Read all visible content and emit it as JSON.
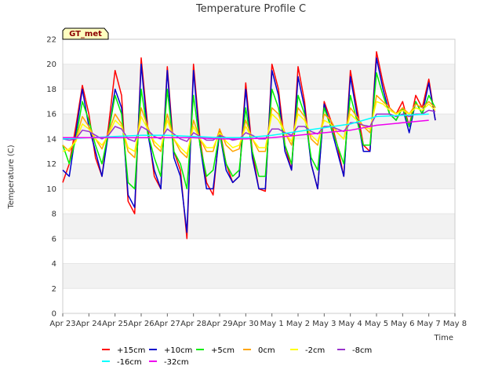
{
  "chart_data": {
    "type": "line",
    "title": "Temperature Profile C",
    "xlabel": "Time",
    "ylabel": "Temperature (C)",
    "ylim": [
      0,
      22
    ],
    "yticks": [
      0,
      2,
      4,
      6,
      8,
      10,
      12,
      14,
      16,
      18,
      20,
      22
    ],
    "xlim": [
      "Apr 23",
      "May 8"
    ],
    "xticks": [
      "Apr 23",
      "Apr 24",
      "Apr 25",
      "Apr 26",
      "Apr 27",
      "Apr 28",
      "Apr 29",
      "Apr 30",
      "May 1",
      "May 2",
      "May 3",
      "May 4",
      "May 5",
      "May 6",
      "May 7",
      "May 8"
    ],
    "grid": "horizontal bands",
    "legend_position": "bottom",
    "badge": "GT_met",
    "series": [
      {
        "name": "+15cm",
        "color": "#ff0000",
        "x": [
          "Apr 23",
          "Apr 23 06:00",
          "Apr 23 12:00",
          "Apr 23 18:00",
          "Apr 24",
          "Apr 24 06:00",
          "Apr 24 12:00",
          "Apr 24 18:00",
          "Apr 25",
          "Apr 25 06:00",
          "Apr 25 12:00",
          "Apr 25 18:00",
          "Apr 26",
          "Apr 26 06:00",
          "Apr 26 12:00",
          "Apr 26 18:00",
          "Apr 27",
          "Apr 27 06:00",
          "Apr 27 12:00",
          "Apr 27 18:00",
          "Apr 28",
          "Apr 28 06:00",
          "Apr 28 12:00",
          "Apr 28 18:00",
          "Apr 29",
          "Apr 29 06:00",
          "Apr 29 12:00",
          "Apr 29 18:00",
          "Apr 30",
          "Apr 30 06:00",
          "Apr 30 12:00",
          "Apr 30 18:00",
          "May 1",
          "May 1 06:00",
          "May 1 12:00",
          "May 1 18:00",
          "May 2",
          "May 2 06:00",
          "May 2 12:00",
          "May 2 18:00",
          "May 3",
          "May 3 06:00",
          "May 3 12:00",
          "May 3 18:00",
          "May 4",
          "May 4 06:00",
          "May 4 12:00",
          "May 4 18:00",
          "May 5",
          "May 5 06:00",
          "May 5 12:00",
          "May 5 18:00",
          "May 6",
          "May 6 06:00",
          "May 6 12:00",
          "May 6 18:00",
          "May 7",
          "May 7 06:00"
        ],
        "values": [
          10.5,
          12.0,
          15.0,
          18.3,
          16.0,
          12.5,
          11.0,
          15.0,
          19.5,
          17.5,
          9.0,
          8.0,
          20.5,
          15.0,
          11.0,
          10.0,
          19.8,
          13.0,
          11.5,
          6.0,
          20.0,
          14.0,
          10.5,
          9.5,
          14.8,
          12.0,
          10.5,
          11.0,
          18.5,
          13.0,
          10.0,
          9.8,
          20.0,
          18.0,
          13.5,
          11.5,
          19.8,
          17.0,
          12.0,
          10.0,
          17.0,
          15.5,
          13.5,
          11.0,
          19.5,
          16.5,
          13.5,
          13.0,
          21.0,
          18.5,
          16.5,
          16.0,
          17.0,
          15.0,
          17.5,
          16.5,
          18.8,
          15.5
        ]
      },
      {
        "name": "+10cm",
        "color": "#0000cc",
        "x": [
          "Apr 23",
          "Apr 23 06:00",
          "Apr 23 12:00",
          "Apr 23 18:00",
          "Apr 24",
          "Apr 24 06:00",
          "Apr 24 12:00",
          "Apr 24 18:00",
          "Apr 25",
          "Apr 25 06:00",
          "Apr 25 12:00",
          "Apr 25 18:00",
          "Apr 26",
          "Apr 26 06:00",
          "Apr 26 12:00",
          "Apr 26 18:00",
          "Apr 27",
          "Apr 27 06:00",
          "Apr 27 12:00",
          "Apr 27 18:00",
          "Apr 28",
          "Apr 28 06:00",
          "Apr 28 12:00",
          "Apr 28 18:00",
          "Apr 29",
          "Apr 29 06:00",
          "Apr 29 12:00",
          "Apr 29 18:00",
          "Apr 30",
          "Apr 30 06:00",
          "Apr 30 12:00",
          "Apr 30 18:00",
          "May 1",
          "May 1 06:00",
          "May 1 12:00",
          "May 1 18:00",
          "May 2",
          "May 2 06:00",
          "May 2 12:00",
          "May 2 18:00",
          "May 3",
          "May 3 06:00",
          "May 3 12:00",
          "May 3 18:00",
          "May 4",
          "May 4 06:00",
          "May 4 12:00",
          "May 4 18:00",
          "May 5",
          "May 5 06:00",
          "May 5 12:00",
          "May 5 18:00",
          "May 6",
          "May 6 06:00",
          "May 6 12:00",
          "May 6 18:00",
          "May 7",
          "May 7 06:00"
        ],
        "values": [
          11.5,
          11.0,
          14.5,
          18.0,
          15.0,
          13.0,
          11.0,
          14.5,
          18.0,
          16.5,
          9.5,
          8.5,
          20.0,
          14.5,
          11.5,
          10.0,
          19.5,
          12.5,
          11.0,
          6.5,
          19.5,
          13.5,
          10.0,
          10.0,
          14.5,
          11.5,
          10.5,
          11.0,
          18.0,
          12.5,
          10.0,
          10.0,
          19.5,
          17.5,
          13.0,
          11.5,
          19.0,
          16.5,
          12.0,
          10.0,
          16.8,
          15.0,
          13.0,
          11.0,
          19.0,
          16.0,
          13.0,
          13.0,
          20.5,
          18.0,
          16.0,
          15.5,
          16.5,
          14.5,
          17.0,
          16.0,
          18.5,
          15.5
        ]
      },
      {
        "name": "+5cm",
        "color": "#00ee00",
        "x": [
          "Apr 23",
          "Apr 23 06:00",
          "Apr 23 12:00",
          "Apr 23 18:00",
          "Apr 24",
          "Apr 24 06:00",
          "Apr 24 12:00",
          "Apr 24 18:00",
          "Apr 25",
          "Apr 25 06:00",
          "Apr 25 12:00",
          "Apr 25 18:00",
          "Apr 26",
          "Apr 26 06:00",
          "Apr 26 12:00",
          "Apr 26 18:00",
          "Apr 27",
          "Apr 27 06:00",
          "Apr 27 12:00",
          "Apr 27 18:00",
          "Apr 28",
          "Apr 28 06:00",
          "Apr 28 12:00",
          "Apr 28 18:00",
          "Apr 29",
          "Apr 29 06:00",
          "Apr 29 12:00",
          "Apr 29 18:00",
          "Apr 30",
          "Apr 30 06:00",
          "Apr 30 12:00",
          "Apr 30 18:00",
          "May 1",
          "May 1 06:00",
          "May 1 12:00",
          "May 1 18:00",
          "May 2",
          "May 2 06:00",
          "May 2 12:00",
          "May 2 18:00",
          "May 3",
          "May 3 06:00",
          "May 3 12:00",
          "May 3 18:00",
          "May 4",
          "May 4 06:00",
          "May 4 12:00",
          "May 4 18:00",
          "May 5",
          "May 5 06:00",
          "May 5 12:00",
          "May 5 18:00",
          "May 6",
          "May 6 06:00",
          "May 6 12:00",
          "May 6 18:00",
          "May 7",
          "May 7 06:00"
        ],
        "values": [
          13.5,
          12.0,
          14.0,
          17.0,
          15.5,
          13.5,
          12.0,
          14.5,
          17.5,
          16.0,
          10.5,
          10.0,
          18.0,
          14.5,
          12.5,
          11.0,
          18.0,
          13.0,
          12.0,
          10.0,
          17.5,
          13.5,
          11.0,
          11.5,
          14.5,
          12.0,
          11.0,
          11.5,
          16.5,
          13.0,
          11.0,
          11.0,
          18.0,
          16.5,
          13.5,
          12.0,
          17.5,
          16.0,
          12.5,
          11.5,
          16.5,
          15.0,
          13.5,
          12.0,
          17.5,
          15.5,
          13.5,
          13.5,
          19.3,
          17.5,
          16.0,
          15.5,
          16.5,
          15.0,
          17.0,
          16.0,
          17.5,
          16.5
        ]
      },
      {
        "name": "0cm",
        "color": "#ffa500",
        "x": [
          "Apr 23",
          "Apr 23 06:00",
          "Apr 23 12:00",
          "Apr 23 18:00",
          "Apr 24",
          "Apr 24 06:00",
          "Apr 24 12:00",
          "Apr 24 18:00",
          "Apr 25",
          "Apr 25 06:00",
          "Apr 25 12:00",
          "Apr 25 18:00",
          "Apr 26",
          "Apr 26 06:00",
          "Apr 26 12:00",
          "Apr 26 18:00",
          "Apr 27",
          "Apr 27 06:00",
          "Apr 27 12:00",
          "Apr 27 18:00",
          "Apr 28",
          "Apr 28 06:00",
          "Apr 28 12:00",
          "Apr 28 18:00",
          "Apr 29",
          "Apr 29 06:00",
          "Apr 29 12:00",
          "Apr 29 18:00",
          "Apr 30",
          "Apr 30 06:00",
          "Apr 30 12:00",
          "Apr 30 18:00",
          "May 1",
          "May 1 06:00",
          "May 1 12:00",
          "May 1 18:00",
          "May 2",
          "May 2 06:00",
          "May 2 12:00",
          "May 2 18:00",
          "May 3",
          "May 3 06:00",
          "May 3 12:00",
          "May 3 18:00",
          "May 4",
          "May 4 06:00",
          "May 4 12:00",
          "May 4 18:00",
          "May 5",
          "May 5 06:00",
          "May 5 12:00",
          "May 5 18:00",
          "May 6",
          "May 6 06:00",
          "May 6 12:00",
          "May 6 18:00",
          "May 7",
          "May 7 06:00"
        ],
        "values": [
          13.5,
          13.0,
          14.0,
          15.8,
          15.0,
          14.0,
          13.2,
          14.5,
          16.0,
          15.2,
          13.0,
          12.5,
          16.5,
          15.0,
          13.5,
          13.0,
          16.0,
          14.0,
          13.0,
          12.5,
          15.5,
          14.0,
          13.0,
          13.0,
          14.8,
          13.5,
          13.0,
          13.2,
          15.5,
          14.0,
          13.0,
          13.0,
          16.5,
          16.0,
          14.5,
          13.5,
          16.5,
          15.8,
          14.0,
          13.5,
          16.0,
          15.5,
          14.5,
          14.0,
          16.5,
          15.8,
          15.0,
          14.5,
          17.5,
          17.0,
          16.5,
          16.0,
          16.5,
          16.0,
          16.8,
          16.5,
          17.0,
          16.5
        ]
      },
      {
        "name": "-2cm",
        "color": "#ffff00",
        "x": [
          "Apr 23",
          "Apr 23 06:00",
          "Apr 23 12:00",
          "Apr 23 18:00",
          "Apr 24",
          "Apr 24 06:00",
          "Apr 24 12:00",
          "Apr 24 18:00",
          "Apr 25",
          "Apr 25 06:00",
          "Apr 25 12:00",
          "Apr 25 18:00",
          "Apr 26",
          "Apr 26 06:00",
          "Apr 26 12:00",
          "Apr 26 18:00",
          "Apr 27",
          "Apr 27 06:00",
          "Apr 27 12:00",
          "Apr 27 18:00",
          "Apr 28",
          "Apr 28 06:00",
          "Apr 28 12:00",
          "Apr 28 18:00",
          "Apr 29",
          "Apr 29 06:00",
          "Apr 29 12:00",
          "Apr 29 18:00",
          "Apr 30",
          "Apr 30 06:00",
          "Apr 30 12:00",
          "Apr 30 18:00",
          "May 1",
          "May 1 06:00",
          "May 1 12:00",
          "May 1 18:00",
          "May 2",
          "May 2 06:00",
          "May 2 12:00",
          "May 2 18:00",
          "May 3",
          "May 3 06:00",
          "May 3 12:00",
          "May 3 18:00",
          "May 4",
          "May 4 06:00",
          "May 4 12:00",
          "May 4 18:00",
          "May 5",
          "May 5 06:00",
          "May 5 12:00",
          "May 5 18:00",
          "May 6",
          "May 6 06:00",
          "May 6 12:00",
          "May 6 18:00",
          "May 7",
          "May 7 06:00"
        ],
        "values": [
          13.0,
          13.2,
          13.8,
          15.2,
          14.8,
          14.0,
          13.5,
          14.3,
          15.5,
          15.0,
          13.3,
          13.0,
          15.8,
          14.8,
          13.8,
          13.3,
          15.5,
          14.0,
          13.3,
          12.8,
          15.0,
          14.0,
          13.3,
          13.3,
          14.5,
          13.8,
          13.3,
          13.5,
          15.0,
          14.0,
          13.3,
          13.3,
          16.0,
          15.5,
          14.5,
          13.8,
          16.0,
          15.5,
          14.3,
          13.8,
          15.5,
          15.2,
          14.5,
          14.0,
          16.0,
          15.5,
          15.0,
          14.8,
          17.0,
          16.8,
          16.3,
          16.0,
          16.3,
          16.0,
          16.5,
          16.3,
          16.8,
          16.3
        ]
      },
      {
        "name": "-8cm",
        "color": "#9932cc",
        "x": [
          "Apr 23",
          "Apr 23 06:00",
          "Apr 23 12:00",
          "Apr 23 18:00",
          "Apr 24",
          "Apr 24 06:00",
          "Apr 24 12:00",
          "Apr 24 18:00",
          "Apr 25",
          "Apr 25 06:00",
          "Apr 25 12:00",
          "Apr 25 18:00",
          "Apr 26",
          "Apr 26 06:00",
          "Apr 26 12:00",
          "Apr 26 18:00",
          "Apr 27",
          "Apr 27 06:00",
          "Apr 27 12:00",
          "Apr 27 18:00",
          "Apr 28",
          "Apr 28 06:00",
          "Apr 28 12:00",
          "Apr 28 18:00",
          "Apr 29",
          "Apr 29 06:00",
          "Apr 29 12:00",
          "Apr 29 18:00",
          "Apr 30",
          "Apr 30 06:00",
          "Apr 30 12:00",
          "Apr 30 18:00",
          "May 1",
          "May 1 06:00",
          "May 1 12:00",
          "May 1 18:00",
          "May 2",
          "May 2 06:00",
          "May 2 12:00",
          "May 2 18:00",
          "May 3",
          "May 3 06:00",
          "May 3 12:00",
          "May 3 18:00",
          "May 4",
          "May 4 06:00",
          "May 4 12:00",
          "May 4 18:00",
          "May 5",
          "May 5 06:00",
          "May 5 12:00",
          "May 5 18:00",
          "May 6",
          "May 6 06:00",
          "May 6 12:00",
          "May 6 18:00",
          "May 7",
          "May 7 06:00"
        ],
        "values": [
          14.0,
          13.9,
          14.0,
          14.7,
          14.6,
          14.3,
          14.0,
          14.3,
          15.0,
          14.8,
          14.0,
          13.8,
          15.0,
          14.7,
          14.2,
          14.0,
          14.8,
          14.4,
          14.0,
          13.8,
          14.5,
          14.2,
          13.9,
          13.9,
          14.3,
          14.1,
          13.9,
          14.0,
          14.5,
          14.3,
          14.0,
          14.0,
          14.8,
          14.8,
          14.5,
          14.3,
          15.0,
          15.0,
          14.6,
          14.4,
          15.0,
          15.0,
          14.8,
          14.6,
          15.3,
          15.3,
          15.1,
          15.0,
          16.0,
          16.0,
          16.0,
          15.8,
          16.0,
          15.8,
          16.0,
          16.0,
          16.3,
          16.2
        ]
      },
      {
        "name": "-16cm",
        "color": "#00ffff",
        "x": [
          "Apr 23",
          "Apr 24",
          "Apr 25",
          "Apr 26",
          "Apr 27",
          "Apr 28",
          "Apr 29",
          "Apr 30",
          "May 1",
          "May 2",
          "May 3",
          "May 4",
          "May 5",
          "May 6",
          "May 7"
        ],
        "values": [
          14.0,
          14.1,
          14.2,
          14.3,
          14.3,
          14.2,
          14.1,
          14.1,
          14.3,
          14.6,
          14.9,
          15.2,
          15.8,
          15.9,
          16.0
        ]
      },
      {
        "name": "-32cm",
        "color": "#ee00ee",
        "x": [
          "Apr 23",
          "Apr 24",
          "Apr 25",
          "Apr 26",
          "Apr 27",
          "Apr 28",
          "Apr 29",
          "Apr 30",
          "May 1",
          "May 2",
          "May 3",
          "May 4",
          "May 5",
          "May 6",
          "May 7"
        ],
        "values": [
          14.1,
          14.1,
          14.1,
          14.1,
          14.1,
          14.1,
          14.0,
          14.0,
          14.1,
          14.3,
          14.5,
          14.7,
          15.1,
          15.3,
          15.5
        ]
      }
    ]
  }
}
